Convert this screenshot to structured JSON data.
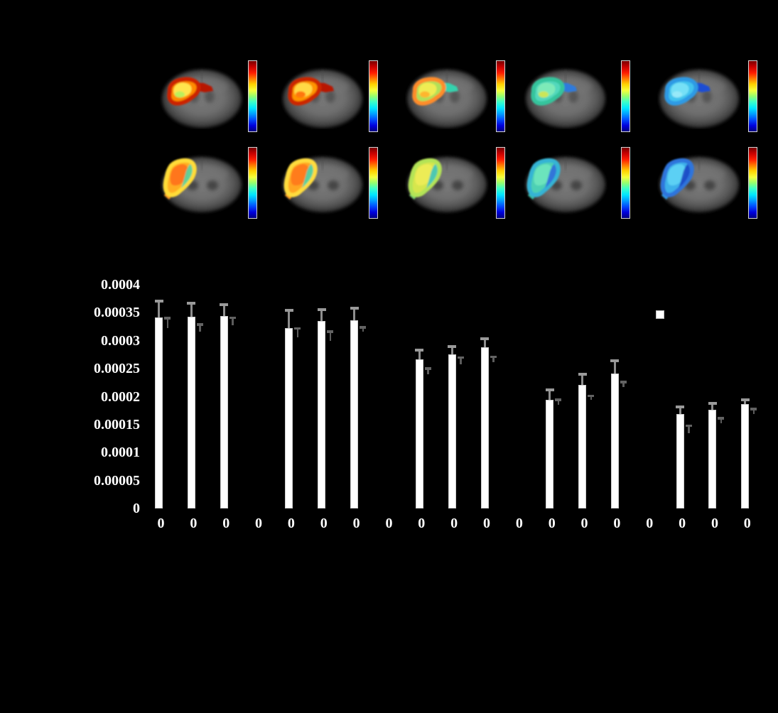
{
  "figure": {
    "background": "#000000",
    "brain_panel": {
      "description": "Axial rodent brain MRI slices with pseudocolor lesion overlays; 5 columns by 2 rows, each image paired with a jet colorbar",
      "colorbar_gradient": [
        "#7a0000",
        "#c80000",
        "#ff1e00",
        "#ff7a00",
        "#ffd200",
        "#f4ff3c",
        "#96ff6e",
        "#3cffc8",
        "#00e6ff",
        "#00a0ff",
        "#0050ff",
        "#0000dc",
        "#000082"
      ],
      "rows": [
        {
          "name": "slice-row-1",
          "cells": [
            {
              "edge": "#cc2200",
              "mid": "#ff8a00",
              "core": "#ffe44d",
              "accent": "#b4ef5e",
              "tail": "#b81400"
            },
            {
              "edge": "#cc2600",
              "mid": "#ff9300",
              "core": "#ffd945",
              "accent": "#ff6a00",
              "tail": "#b81400"
            },
            {
              "edge": "#ff8c2a",
              "mid": "#b0e058",
              "core": "#f0ec52",
              "accent": "#ffb02a",
              "tail": "#36d2ae"
            },
            {
              "edge": "#34c49c",
              "mid": "#52d8bc",
              "core": "#7eeab8",
              "accent": "#d4e64e",
              "tail": "#2e7adc"
            },
            {
              "edge": "#2e9ae4",
              "mid": "#42c4ee",
              "core": "#76e0f6",
              "accent": "#9ceaf8",
              "tail": "#1a4ed4"
            }
          ]
        },
        {
          "name": "slice-row-2",
          "cells": [
            {
              "edge": "#ffdc38",
              "mid": "#ffae24",
              "core": "#ff761a",
              "accent": "#54d4a4",
              "tail": "#ff9a20"
            },
            {
              "edge": "#ffdc3c",
              "mid": "#ffa622",
              "core": "#ff7c1c",
              "accent": "#48d4ac",
              "tail": "#ff9e22"
            },
            {
              "edge": "#b4e456",
              "mid": "#d6e64e",
              "core": "#ecec56",
              "accent": "#3ec4bc",
              "tail": "#7cd46c"
            },
            {
              "edge": "#36b4d4",
              "mid": "#4ed0b4",
              "core": "#6ce4bc",
              "accent": "#2e6adc",
              "tail": "#36bca4"
            },
            {
              "edge": "#2e74dc",
              "mid": "#3eb0ea",
              "core": "#5cd0f4",
              "accent": "#1a46c4",
              "tail": "#2e98e4"
            }
          ]
        }
      ]
    }
  },
  "chart_data": {
    "type": "bar",
    "title": "",
    "xlabel": "",
    "ylabel": "",
    "grid": false,
    "ylim": [
      0,
      0.0004
    ],
    "ytick_labels": [
      "0.0004",
      "0.00035",
      "0.0003",
      "0.00025",
      "0.0002",
      "0.00015",
      "0.0001",
      "0.00005",
      "0"
    ],
    "ytick_values": [
      0.0004,
      0.00035,
      0.0003,
      0.00025,
      0.0002,
      0.00015,
      0.0001,
      5e-05,
      0
    ],
    "categories": [
      "0",
      "0",
      "0",
      "0",
      "0",
      "0",
      "0",
      "0",
      "0",
      "0",
      "0",
      "0",
      "0",
      "0",
      "0",
      "0",
      "0",
      "0",
      "0"
    ],
    "legend": {
      "marker_color": "#ffffff",
      "position": "upper-right"
    },
    "series": [
      {
        "name": "series-1-white-bars",
        "bar_color": "#ffffff",
        "error_color": "#8e8e8e",
        "values": [
          0.000342,
          0.000343,
          0.000344,
          null,
          0.000323,
          0.000335,
          0.000337,
          null,
          0.000267,
          0.000276,
          0.000288,
          null,
          0.000194,
          0.000221,
          0.000241,
          null,
          0.000169,
          0.000177,
          0.000187
        ],
        "errors": [
          3e-05,
          2.5e-05,
          2.2e-05,
          null,
          3.3e-05,
          2.2e-05,
          2.2e-05,
          null,
          1.7e-05,
          1.5e-05,
          1.7e-05,
          null,
          1.9e-05,
          2e-05,
          2.4e-05,
          null,
          1.4e-05,
          1.2e-05,
          9e-06
        ]
      },
      {
        "name": "series-2-dark-bars",
        "bar_color": "#000000",
        "error_color": "#5c5c5c",
        "values": [
          0.000323,
          0.000316,
          0.000328,
          null,
          0.000306,
          0.0003,
          0.000316,
          null,
          0.00024,
          0.000258,
          0.000262,
          null,
          0.000185,
          0.000194,
          0.000217,
          null,
          0.000135,
          0.000152,
          0.000169
        ],
        "errors": [
          1.8e-05,
          1.4e-05,
          1.4e-05,
          null,
          1.7e-05,
          1.7e-05,
          9e-06,
          null,
          1.1e-05,
          1.3e-05,
          1e-05,
          null,
          1e-05,
          8e-06,
          1e-05,
          null,
          1.4e-05,
          1e-05,
          1e-05
        ]
      }
    ]
  }
}
